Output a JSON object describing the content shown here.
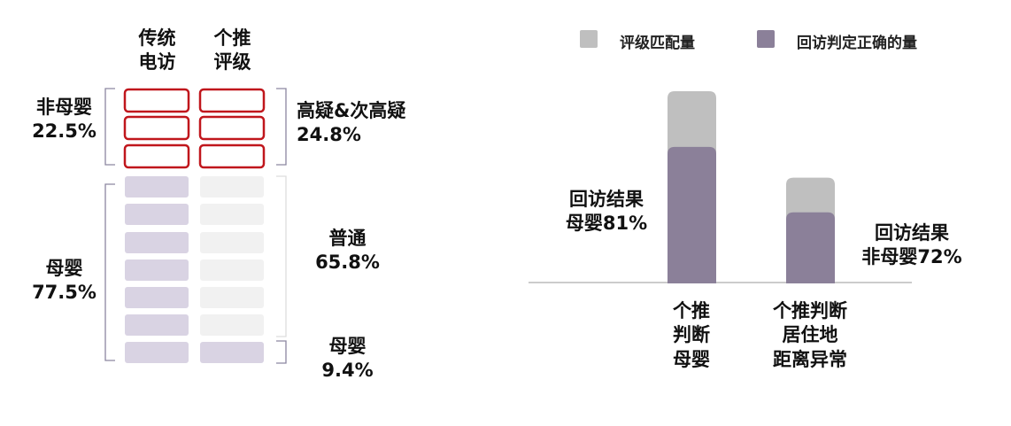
{
  "diagram": {
    "column_headers": [
      "传统\n电访",
      "个推\n评级"
    ],
    "left_groups": [
      "非母婴\n22.5%",
      "母婴\n77.5%"
    ],
    "right_groups": [
      "高疑&次高疑\n24.8%",
      "普通\n65.8%",
      "母婴\n9.4%"
    ]
  },
  "chart_data": {
    "type": "bar",
    "categories": [
      "个推\n判断\n母婴",
      "个推判断\n居住地\n距离异常"
    ],
    "series": [
      {
        "name": "评级匹配量",
        "color": "#bfbfbf",
        "values": [
          100,
          55
        ]
      },
      {
        "name": "回访判定正确的量",
        "color": "#8b8099",
        "values": [
          71,
          37
        ]
      }
    ],
    "ylim": [
      0,
      100
    ],
    "overlap": true,
    "annotations": [
      "回访结果\n母婴81%",
      "回访结果\n非母婴72%"
    ]
  }
}
